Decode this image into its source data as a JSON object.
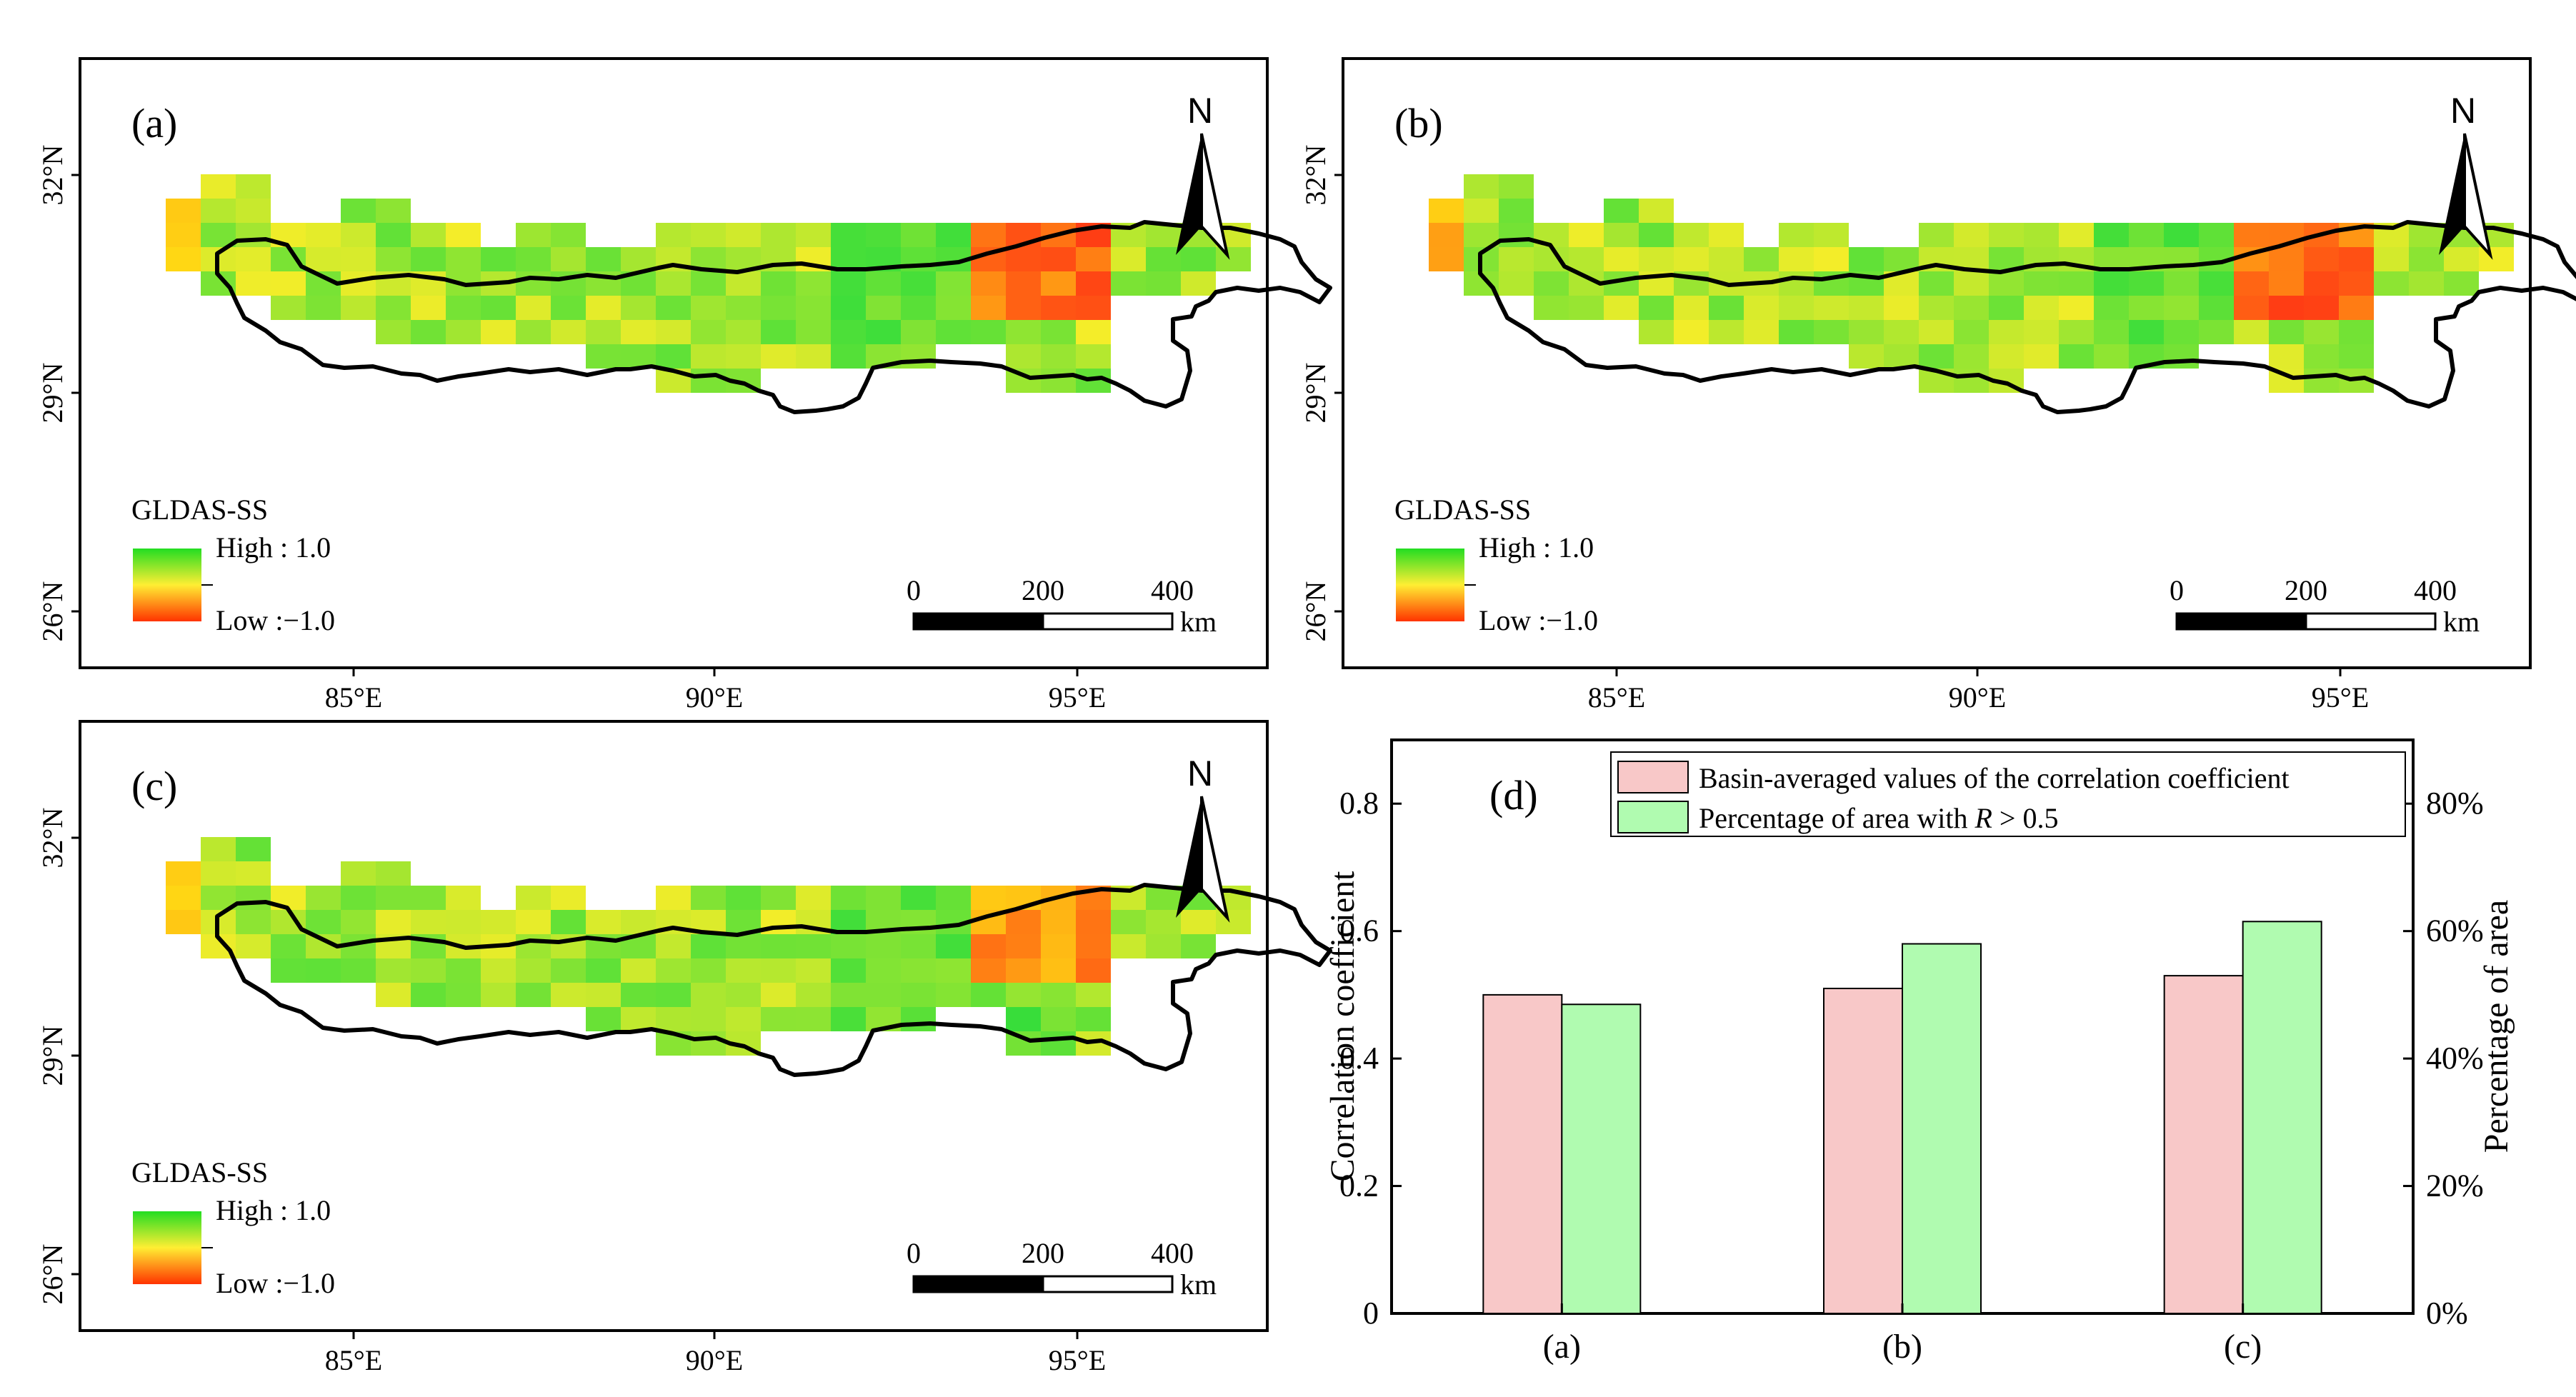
{
  "maps": [
    {
      "label": "(a)",
      "north_symbol": "N",
      "legend_title": "GLDAS-SS",
      "legend_high": "High : 1.0",
      "legend_low": "Low :−1.0",
      "scale_labels": [
        "0",
        "200",
        "400"
      ],
      "scale_unit": "km",
      "lat_ticks": [
        "32°N",
        "29°N",
        "26°N"
      ],
      "lon_ticks": [
        "85°E",
        "90°E",
        "95°E"
      ]
    },
    {
      "label": "(b)",
      "north_symbol": "N",
      "legend_title": "GLDAS-SS",
      "legend_high": "High : 1.0",
      "legend_low": "Low :−1.0",
      "scale_labels": [
        "0",
        "200",
        "400"
      ],
      "scale_unit": "km",
      "lat_ticks": [
        "32°N",
        "29°N",
        "26°N"
      ],
      "lon_ticks": [
        "85°E",
        "90°E",
        "95°E"
      ]
    },
    {
      "label": "(c)",
      "north_symbol": "N",
      "legend_title": "GLDAS-SS",
      "legend_high": "High : 1.0",
      "legend_low": "Low :−1.0",
      "scale_labels": [
        "0",
        "200",
        "400"
      ],
      "scale_unit": "km",
      "lat_ticks": [
        "32°N",
        "29°N",
        "26°N"
      ],
      "lon_ticks": [
        "85°E",
        "90°E",
        "95°E"
      ]
    }
  ],
  "chart_data": {
    "type": "bar",
    "panel_label": "(d)",
    "categories": [
      "(a)",
      "(b)",
      "(c)"
    ],
    "series": [
      {
        "name": "Basin-averaged values of the correlation coefficient",
        "axis": "left",
        "color": "#f8c8c8",
        "values": [
          0.5,
          0.51,
          0.53
        ]
      },
      {
        "name": "Percentage of area with R > 0.5",
        "name_prefix": "Percentage of area with ",
        "name_italic": "R",
        "name_suffix": " > 0.5",
        "axis": "right",
        "color": "#b0fbb0",
        "values": [
          48.5,
          58.0,
          61.5
        ]
      }
    ],
    "ylabel": "Correlation coefficient",
    "ylim": [
      0,
      0.9
    ],
    "yticks": [
      0,
      0.2,
      0.4,
      0.6,
      0.8
    ],
    "ytick_labels": [
      "0",
      "0.2",
      "0.4",
      "0.6",
      "0.8"
    ],
    "y2label": "Percentage of area",
    "y2lim": [
      0,
      90
    ],
    "y2ticks": [
      0,
      20,
      40,
      60,
      80
    ],
    "y2tick_labels": [
      "0%",
      "20%",
      "40%",
      "60%",
      "80%"
    ],
    "legend_position": "top-right",
    "grid": false
  }
}
